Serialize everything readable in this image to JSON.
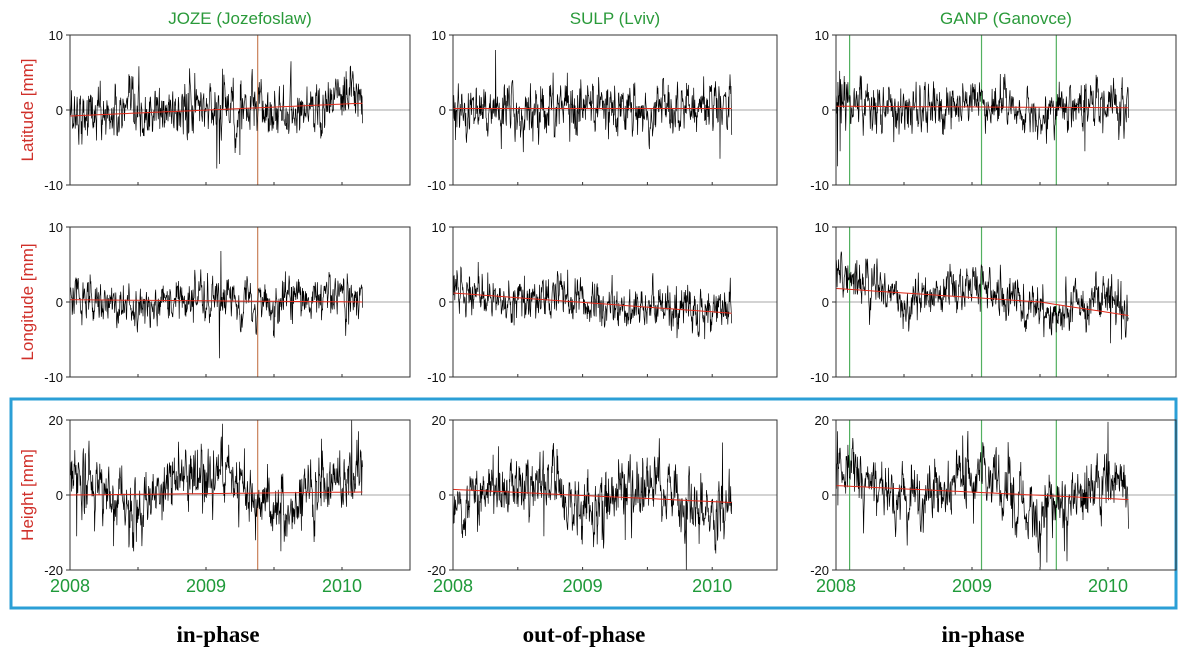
{
  "chart_data": {
    "type": "line",
    "x_ticks": [
      "2008",
      "2009",
      "2010"
    ],
    "xlim": [
      2008.0,
      2010.5
    ],
    "colors": {
      "observed": "#000000",
      "trend": "#e02a1a",
      "station_title": "#2a9a3a",
      "axis_label": "#d0302a",
      "x_tick": "#1f9a3a",
      "event_line_joze": "#c9805a",
      "event_line_ganp": "#52b060",
      "highlight_box": "#2b9fd6",
      "zero_line": "#8a8a8a"
    },
    "stations": [
      {
        "title": "JOZE (Jozefoslaw)",
        "event_lines": [
          2009.38
        ],
        "event_color": "event_line_joze",
        "end": 2010.15
      },
      {
        "title": "SULP (Lviv)",
        "event_lines": [],
        "event_color": "event_line_joze",
        "end": 2010.15
      },
      {
        "title": "GANP (Ganovce)",
        "event_lines": [
          2008.1,
          2009.07,
          2009.62
        ],
        "event_color": "event_line_ganp",
        "end": 2010.15
      }
    ],
    "components": [
      {
        "name": "Latitude",
        "ylabel": "Latitude [mm]",
        "ylim": [
          -10,
          10
        ],
        "yticks": [
          "10",
          "0",
          "-10"
        ]
      },
      {
        "name": "Longitude",
        "ylabel": "Longitude [mm]",
        "ylim": [
          -10,
          10
        ],
        "yticks": [
          "10",
          "0",
          "-10"
        ]
      },
      {
        "name": "Height",
        "ylabel": "Height [mm]",
        "ylim": [
          -20,
          20
        ],
        "yticks": [
          "20",
          "0",
          "-20"
        ]
      }
    ],
    "series": [
      {
        "station": 0,
        "component": 0,
        "noise": 1.6,
        "seasonal": 0.5,
        "phase": 0.0,
        "trend": [
          [
            2008.0,
            -0.8
          ],
          [
            2010.15,
            0.9
          ]
        ],
        "spikes": [
          [
            2009.08,
            -7.8
          ],
          [
            2009.1,
            -7.2
          ],
          [
            2009.12,
            5.5
          ],
          [
            2009.2,
            4.3
          ],
          [
            2009.25,
            -6.0
          ],
          [
            2010.12,
            3.5
          ]
        ]
      },
      {
        "station": 1,
        "component": 0,
        "noise": 1.5,
        "seasonal": 0.4,
        "phase": 0.5,
        "trend": [
          [
            2008.0,
            0.2
          ],
          [
            2010.15,
            0.2
          ]
        ],
        "spikes": [
          [
            2008.33,
            8.0
          ],
          [
            2008.02,
            -4.0
          ],
          [
            2010.06,
            -6.5
          ],
          [
            2009.27,
            -3.5
          ]
        ]
      },
      {
        "station": 2,
        "component": 0,
        "noise": 1.5,
        "seasonal": 0.6,
        "phase": 0.2,
        "trend": [
          [
            2008.0,
            0.5
          ],
          [
            2010.15,
            0.3
          ]
        ],
        "spikes": [
          [
            2008.01,
            -7.5
          ],
          [
            2008.03,
            -5.5
          ],
          [
            2009.83,
            -5.5
          ],
          [
            2010.08,
            -4.0
          ]
        ]
      },
      {
        "station": 0,
        "component": 1,
        "noise": 1.3,
        "seasonal": 0.5,
        "phase": 0.3,
        "trend": [
          [
            2008.0,
            0.3
          ],
          [
            2010.15,
            0.0
          ]
        ],
        "spikes": [
          [
            2009.1,
            -7.5
          ],
          [
            2009.11,
            6.8
          ],
          [
            2009.05,
            3.5
          ],
          [
            2010.05,
            -3.0
          ]
        ]
      },
      {
        "station": 1,
        "component": 1,
        "noise": 1.2,
        "seasonal": 0.6,
        "phase": 0.7,
        "trend": [
          [
            2008.0,
            1.2
          ],
          [
            2010.15,
            -1.5
          ]
        ],
        "spikes": [
          [
            2008.55,
            3.5
          ],
          [
            2010.12,
            -3.0
          ]
        ]
      },
      {
        "station": 2,
        "component": 1,
        "noise": 1.3,
        "seasonal": 1.0,
        "phase": 0.1,
        "trend": [
          [
            2008.0,
            1.8
          ],
          [
            2009.5,
            0.0
          ],
          [
            2010.15,
            -1.8
          ]
        ],
        "spikes": [
          [
            2008.01,
            4.5
          ],
          [
            2010.02,
            -5.5
          ],
          [
            2010.1,
            -5.0
          ]
        ]
      },
      {
        "station": 0,
        "component": 2,
        "noise": 3.8,
        "seasonal": 4.0,
        "phase": 0.0,
        "trend": [
          [
            2008.0,
            0.0
          ],
          [
            2010.15,
            0.8
          ]
        ],
        "spikes": [
          [
            2009.12,
            19.0
          ],
          [
            2009.11,
            14.0
          ],
          [
            2009.85,
            15.0
          ],
          [
            2010.07,
            20.0
          ],
          [
            2010.12,
            17.0
          ],
          [
            2009.55,
            -15.0
          ],
          [
            2008.05,
            -11.0
          ]
        ]
      },
      {
        "station": 1,
        "component": 2,
        "noise": 3.5,
        "seasonal": -3.5,
        "phase": 0.0,
        "trend": [
          [
            2008.0,
            1.5
          ],
          [
            2010.15,
            -2.0
          ]
        ],
        "spikes": [
          [
            2009.8,
            -20.0
          ],
          [
            2010.08,
            14.0
          ],
          [
            2008.35,
            13.0
          ],
          [
            2009.33,
            -12.0
          ],
          [
            2008.7,
            -11.0
          ]
        ]
      },
      {
        "station": 2,
        "component": 2,
        "noise": 3.6,
        "seasonal": 4.0,
        "phase": 0.0,
        "trend": [
          [
            2008.0,
            2.5
          ],
          [
            2010.15,
            -1.2
          ]
        ],
        "spikes": [
          [
            2008.01,
            17.0
          ],
          [
            2009.5,
            -20.0
          ],
          [
            2009.55,
            -18.0
          ],
          [
            2010.0,
            19.5
          ],
          [
            2009.68,
            -15.0
          ],
          [
            2010.15,
            -9.0
          ]
        ]
      }
    ]
  },
  "captions": {
    "col0": "in-phase",
    "col1": "out-of-phase",
    "col2": "in-phase"
  }
}
